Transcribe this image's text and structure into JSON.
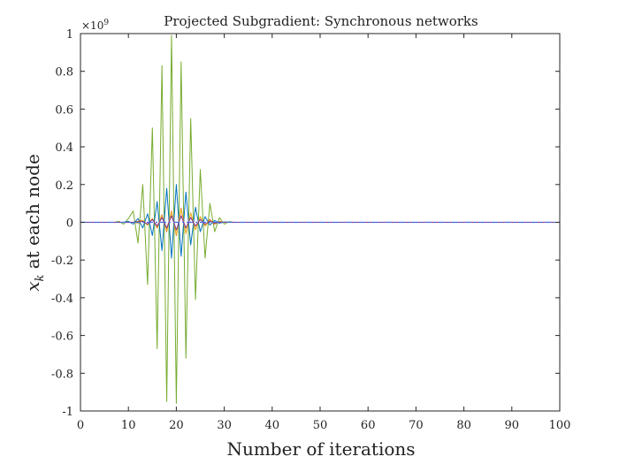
{
  "chart_data": {
    "type": "line",
    "title": "Projected Subgradient: Synchronous networks",
    "xlabel": "Number of iterations",
    "ylabel_main": "x",
    "ylabel_sub": "k",
    "ylabel_rest": " at each node",
    "y_exponent_base": "×10",
    "y_exponent_power": "9",
    "xlim": [
      0,
      100
    ],
    "ylim": [
      -1,
      1
    ],
    "x_ticks": [
      0,
      10,
      20,
      30,
      40,
      50,
      60,
      70,
      80,
      90,
      100
    ],
    "x_tick_labels": [
      "0",
      "10",
      "20",
      "30",
      "40",
      "50",
      "60",
      "70",
      "80",
      "90",
      "100"
    ],
    "y_ticks": [
      -1,
      -0.8,
      -0.6,
      -0.4,
      -0.2,
      0,
      0.2,
      0.4,
      0.6,
      0.8,
      1
    ],
    "y_tick_labels": [
      "-1",
      "-0.8",
      "-0.6",
      "-0.4",
      "-0.2",
      "0",
      "0.2",
      "0.4",
      "0.6",
      "0.8",
      "1"
    ],
    "grid": false,
    "colors": {
      "green": "#77ac30",
      "blue": "#0072bd",
      "orange": "#d95319",
      "yellow": "#edb120",
      "purple": "#7e2f8e",
      "reference": "#4169e1"
    },
    "series": [
      {
        "color": "green",
        "x": [
          0,
          7,
          8,
          9,
          10,
          11,
          12,
          13,
          14,
          15,
          16,
          17,
          18,
          19,
          20,
          21,
          22,
          23,
          24,
          25,
          26,
          27,
          28,
          29,
          30,
          31,
          32,
          33,
          40,
          100
        ],
        "y": [
          0,
          0,
          0.005,
          -0.01,
          0.02,
          0.06,
          -0.11,
          0.2,
          -0.33,
          0.5,
          -0.67,
          0.83,
          -0.95,
          0.99,
          -0.96,
          0.85,
          -0.72,
          0.55,
          -0.41,
          0.28,
          -0.19,
          0.1,
          -0.05,
          0.025,
          -0.01,
          0.004,
          0,
          0,
          0,
          0
        ]
      },
      {
        "color": "blue",
        "x": [
          0,
          9,
          10,
          11,
          12,
          13,
          14,
          15,
          16,
          17,
          18,
          19,
          20,
          21,
          22,
          23,
          24,
          25,
          26,
          27,
          28,
          29,
          30,
          31,
          32,
          40,
          100
        ],
        "y": [
          0,
          0,
          0.005,
          -0.01,
          0.02,
          -0.03,
          0.045,
          -0.07,
          0.11,
          -0.15,
          0.18,
          -0.19,
          0.2,
          -0.18,
          0.16,
          -0.12,
          0.08,
          -0.05,
          0.03,
          -0.015,
          0.01,
          -0.005,
          0.002,
          0,
          0,
          0,
          0
        ]
      },
      {
        "color": "orange",
        "x": [
          0,
          11,
          12,
          13,
          14,
          15,
          16,
          17,
          18,
          19,
          20,
          21,
          22,
          23,
          24,
          25,
          26,
          27,
          28,
          29,
          30,
          31,
          40,
          100
        ],
        "y": [
          0,
          0,
          0.005,
          0.01,
          -0.015,
          0.02,
          -0.03,
          0.04,
          -0.05,
          0.06,
          -0.07,
          0.075,
          -0.06,
          0.05,
          -0.04,
          0.03,
          -0.02,
          0.015,
          -0.01,
          0.005,
          0,
          0,
          0,
          0
        ]
      },
      {
        "color": "yellow",
        "x": [
          0,
          11,
          12,
          13,
          14,
          15,
          16,
          17,
          18,
          19,
          20,
          21,
          22,
          23,
          24,
          25,
          26,
          27,
          28,
          29,
          30,
          40,
          100
        ],
        "y": [
          0,
          0,
          -0.005,
          0.01,
          -0.015,
          0.02,
          -0.025,
          0.035,
          -0.045,
          0.055,
          -0.065,
          0.07,
          -0.06,
          0.05,
          -0.04,
          0.03,
          -0.02,
          0.01,
          -0.005,
          0.003,
          0,
          0,
          0
        ]
      },
      {
        "color": "purple",
        "x": [
          0,
          12,
          13,
          14,
          15,
          16,
          17,
          18,
          19,
          20,
          21,
          22,
          23,
          24,
          25,
          26,
          27,
          28,
          29,
          40,
          100
        ],
        "y": [
          0,
          0,
          0.005,
          -0.01,
          0.015,
          -0.02,
          0.025,
          -0.03,
          0.035,
          -0.04,
          0.035,
          -0.03,
          0.025,
          -0.02,
          0.015,
          -0.01,
          0.005,
          -0.003,
          0,
          0,
          0
        ]
      }
    ],
    "reference_line": {
      "y": 0,
      "x": [
        0,
        100
      ],
      "color": "reference",
      "style": "dash-dot"
    }
  }
}
